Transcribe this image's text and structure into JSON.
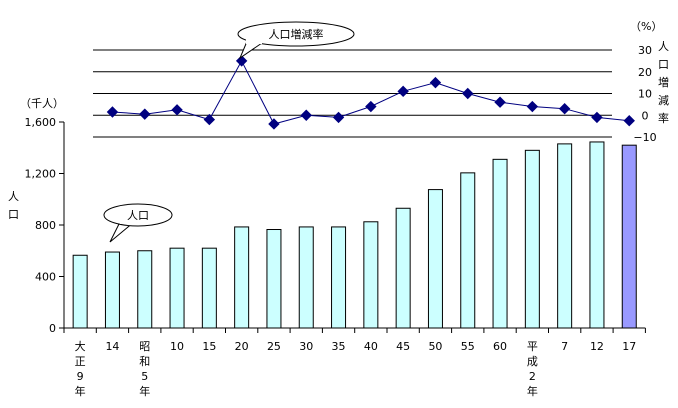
{
  "chart_data": [
    {
      "type": "bar",
      "categories": [
        "大正9年",
        "14",
        "昭和5年",
        "10",
        "15",
        "20",
        "25",
        "30",
        "35",
        "40",
        "45",
        "50",
        "55",
        "60",
        "平成2年",
        "7",
        "12",
        "17"
      ],
      "category_label_chars": [
        [
          "大",
          "正",
          "9",
          "年"
        ],
        [
          "14"
        ],
        [
          "昭",
          "和",
          "5",
          "年"
        ],
        [
          "10"
        ],
        [
          "15"
        ],
        [
          "20"
        ],
        [
          "25"
        ],
        [
          "30"
        ],
        [
          "35"
        ],
        [
          "40"
        ],
        [
          "45"
        ],
        [
          "50"
        ],
        [
          "55"
        ],
        [
          "60"
        ],
        [
          "平",
          "成",
          "2",
          "年"
        ],
        [
          "7"
        ],
        [
          "12"
        ],
        [
          "17"
        ]
      ],
      "series": [
        {
          "name": "人口",
          "values": [
            565,
            590,
            600,
            620,
            620,
            785,
            765,
            785,
            785,
            825,
            930,
            1075,
            1205,
            1310,
            1380,
            1430,
            1445,
            1420
          ]
        }
      ],
      "highlight_index": 17,
      "ylim": [
        0,
        1600
      ],
      "yticks": [
        0,
        400,
        800,
        1200,
        1600
      ],
      "ytick_labels": [
        "0",
        "400",
        "800",
        "1,200",
        "1,600"
      ],
      "unit": "（千人）",
      "ylabel": "人口",
      "callout": "人口",
      "colors": {
        "bar": "#ccffff",
        "bar_highlight": "#9999ff",
        "bar_stroke": "#000000"
      }
    },
    {
      "type": "line",
      "series": [
        {
          "name": "人口増減率",
          "values": [
            1.5,
            0.5,
            2.5,
            -2.0,
            25.0,
            -4.0,
            0.0,
            -1.0,
            4.0,
            11.0,
            15.0,
            10.0,
            6.0,
            4.0,
            3.0,
            -1.0,
            -2.5
          ]
        }
      ],
      "ylim": [
        -10,
        30
      ],
      "yticks": [
        -10,
        0,
        10,
        20,
        30
      ],
      "ytick_labels": [
        "−10",
        "0",
        "10",
        "20",
        "30"
      ],
      "unit": "（%）",
      "ylabel": "人口増減率",
      "callout": "人口増減率",
      "colors": {
        "line": "#000080",
        "marker": "#000080"
      }
    }
  ]
}
